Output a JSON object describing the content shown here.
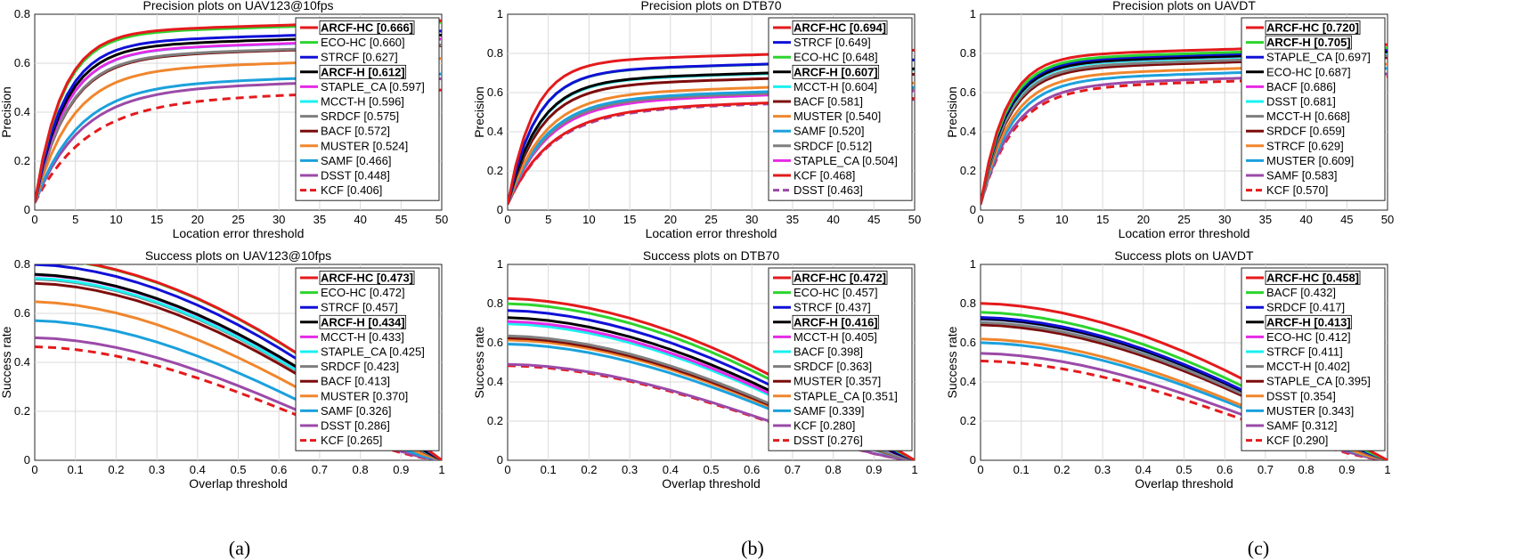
{
  "colors": {
    "ARCF-HC": "#e41a1c",
    "ECO-HC": "#2dd42d",
    "STRCF": "#1010d8",
    "ARCF-H": "#000000",
    "STAPLE_CA": "#e62ae6",
    "MCCT-H": "#19f0f0",
    "SRDCF": "#7f7f7f",
    "BACF": "#7d0c0c",
    "MUSTER": "#f0862d",
    "SAMF": "#1ba1dc",
    "DSST": "#9b4aa8",
    "KCF": "#e41a1c"
  },
  "captions": [
    "(a)",
    "(b)",
    "(c)"
  ],
  "chart_data": [
    {
      "id": "prec-uav123",
      "type": "line",
      "kind": "precision",
      "title": "Precision plots on UAV123@10fps",
      "xlabel": "Location error threshold",
      "ylabel": "Precision",
      "xlim": [
        0,
        50
      ],
      "ylim": [
        0,
        0.8
      ],
      "xticks": [
        "0",
        "5",
        "10",
        "15",
        "20",
        "25",
        "30",
        "35",
        "40",
        "45",
        "50"
      ],
      "yticks": [
        "0",
        "0.2",
        "0.4",
        "0.6",
        "0.8"
      ],
      "series": [
        {
          "name": "ARCF-HC",
          "score": "0.666",
          "bold": true
        },
        {
          "name": "ECO-HC",
          "score": "0.660"
        },
        {
          "name": "STRCF",
          "score": "0.627"
        },
        {
          "name": "ARCF-H",
          "score": "0.612",
          "bold": true
        },
        {
          "name": "STAPLE_CA",
          "score": "0.597"
        },
        {
          "name": "MCCT-H",
          "score": "0.596"
        },
        {
          "name": "SRDCF",
          "score": "0.575"
        },
        {
          "name": "BACF",
          "score": "0.572"
        },
        {
          "name": "MUSTER",
          "score": "0.524"
        },
        {
          "name": "SAMF",
          "score": "0.466"
        },
        {
          "name": "DSST",
          "score": "0.448"
        },
        {
          "name": "KCF",
          "score": "0.406",
          "dashed": true
        }
      ]
    },
    {
      "id": "prec-dtb70",
      "type": "line",
      "kind": "precision",
      "title": "Precision plots on DTB70",
      "xlabel": "Location error threshold",
      "ylabel": "Precision",
      "xlim": [
        0,
        50
      ],
      "ylim": [
        0,
        1
      ],
      "xticks": [
        "0",
        "5",
        "10",
        "15",
        "20",
        "25",
        "30",
        "35",
        "40",
        "45",
        "50"
      ],
      "yticks": [
        "0",
        "0.2",
        "0.4",
        "0.6",
        "0.8",
        "1"
      ],
      "series": [
        {
          "name": "ARCF-HC",
          "score": "0.694",
          "bold": true
        },
        {
          "name": "STRCF",
          "score": "0.649"
        },
        {
          "name": "ECO-HC",
          "score": "0.648"
        },
        {
          "name": "ARCF-H",
          "score": "0.607",
          "bold": true
        },
        {
          "name": "MCCT-H",
          "score": "0.604"
        },
        {
          "name": "BACF",
          "score": "0.581"
        },
        {
          "name": "MUSTER",
          "score": "0.540"
        },
        {
          "name": "SAMF",
          "score": "0.520"
        },
        {
          "name": "SRDCF",
          "score": "0.512"
        },
        {
          "name": "STAPLE_CA",
          "score": "0.504"
        },
        {
          "name": "KCF",
          "score": "0.468"
        },
        {
          "name": "DSST",
          "score": "0.463",
          "dashed": true
        }
      ]
    },
    {
      "id": "prec-uavdt",
      "type": "line",
      "kind": "precision",
      "title": "Precision plots on UAVDT",
      "xlabel": "Location error threshold",
      "ylabel": "Precision",
      "xlim": [
        0,
        50
      ],
      "ylim": [
        0,
        1
      ],
      "xticks": [
        "0",
        "5",
        "10",
        "15",
        "20",
        "25",
        "30",
        "35",
        "40",
        "45",
        "50"
      ],
      "yticks": [
        "0",
        "0.2",
        "0.4",
        "0.6",
        "0.8",
        "1"
      ],
      "series": [
        {
          "name": "ARCF-HC",
          "score": "0.720",
          "bold": true
        },
        {
          "name": "ARCF-H",
          "score": "0.705",
          "bold": true,
          "colorKey": "ECO-HC"
        },
        {
          "name": "STAPLE_CA",
          "score": "0.697",
          "colorKey": "STRCF"
        },
        {
          "name": "ECO-HC",
          "score": "0.687",
          "colorKey": "ARCF-H"
        },
        {
          "name": "BACF",
          "score": "0.686",
          "colorKey": "STAPLE_CA"
        },
        {
          "name": "DSST",
          "score": "0.681",
          "colorKey": "MCCT-H"
        },
        {
          "name": "MCCT-H",
          "score": "0.668",
          "colorKey": "SRDCF"
        },
        {
          "name": "SRDCF",
          "score": "0.659",
          "colorKey": "BACF"
        },
        {
          "name": "STRCF",
          "score": "0.629",
          "colorKey": "MUSTER"
        },
        {
          "name": "MUSTER",
          "score": "0.609",
          "colorKey": "SAMF"
        },
        {
          "name": "SAMF",
          "score": "0.583",
          "colorKey": "DSST"
        },
        {
          "name": "KCF",
          "score": "0.570",
          "dashed": true
        }
      ]
    },
    {
      "id": "succ-uav123",
      "type": "line",
      "kind": "success",
      "title": "Success plots on UAV123@10fps",
      "xlabel": "Overlap threshold",
      "ylabel": "Success rate",
      "xlim": [
        0,
        1
      ],
      "ylim": [
        0,
        0.8
      ],
      "xticks": [
        "0",
        "0.1",
        "0.2",
        "0.3",
        "0.4",
        "0.5",
        "0.6",
        "0.7",
        "0.8",
        "0.9",
        "1"
      ],
      "yticks": [
        "0",
        "0.2",
        "0.4",
        "0.6",
        "0.8"
      ],
      "series": [
        {
          "name": "ARCF-HC",
          "score": "0.473",
          "bold": true
        },
        {
          "name": "ECO-HC",
          "score": "0.472"
        },
        {
          "name": "STRCF",
          "score": "0.457"
        },
        {
          "name": "ARCF-H",
          "score": "0.434",
          "bold": true
        },
        {
          "name": "MCCT-H",
          "score": "0.433",
          "colorKey": "STAPLE_CA"
        },
        {
          "name": "STAPLE_CA",
          "score": "0.425",
          "colorKey": "MCCT-H"
        },
        {
          "name": "SRDCF",
          "score": "0.423"
        },
        {
          "name": "BACF",
          "score": "0.413"
        },
        {
          "name": "MUSTER",
          "score": "0.370"
        },
        {
          "name": "SAMF",
          "score": "0.326"
        },
        {
          "name": "DSST",
          "score": "0.286"
        },
        {
          "name": "KCF",
          "score": "0.265",
          "dashed": true
        }
      ]
    },
    {
      "id": "succ-dtb70",
      "type": "line",
      "kind": "success",
      "title": "Success plots on DTB70",
      "xlabel": "Overlap threshold",
      "ylabel": "Success rate",
      "xlim": [
        0,
        1
      ],
      "ylim": [
        0,
        1
      ],
      "xticks": [
        "0",
        "0.1",
        "0.2",
        "0.3",
        "0.4",
        "0.5",
        "0.6",
        "0.7",
        "0.8",
        "0.9",
        "1"
      ],
      "yticks": [
        "0",
        "0.2",
        "0.4",
        "0.6",
        "0.8",
        "1"
      ],
      "series": [
        {
          "name": "ARCF-HC",
          "score": "0.472",
          "bold": true
        },
        {
          "name": "ECO-HC",
          "score": "0.457"
        },
        {
          "name": "STRCF",
          "score": "0.437"
        },
        {
          "name": "ARCF-H",
          "score": "0.416",
          "bold": true
        },
        {
          "name": "MCCT-H",
          "score": "0.405",
          "colorKey": "STAPLE_CA"
        },
        {
          "name": "BACF",
          "score": "0.398",
          "colorKey": "MCCT-H"
        },
        {
          "name": "SRDCF",
          "score": "0.363"
        },
        {
          "name": "MUSTER",
          "score": "0.357",
          "colorKey": "BACF"
        },
        {
          "name": "STAPLE_CA",
          "score": "0.351",
          "colorKey": "MUSTER"
        },
        {
          "name": "SAMF",
          "score": "0.339"
        },
        {
          "name": "KCF",
          "score": "0.280",
          "colorKey": "DSST"
        },
        {
          "name": "DSST",
          "score": "0.276",
          "dashed": true,
          "colorKey": "KCF"
        }
      ]
    },
    {
      "id": "succ-uavdt",
      "type": "line",
      "kind": "success",
      "title": "Success plots on UAVDT",
      "xlabel": "Overlap threshold",
      "ylabel": "Success rate",
      "xlim": [
        0,
        1
      ],
      "ylim": [
        0,
        1
      ],
      "xticks": [
        "0",
        "0.1",
        "0.2",
        "0.3",
        "0.4",
        "0.5",
        "0.6",
        "0.7",
        "0.8",
        "0.9",
        "1"
      ],
      "yticks": [
        "0",
        "0.2",
        "0.4",
        "0.6",
        "0.8",
        "1"
      ],
      "series": [
        {
          "name": "ARCF-HC",
          "score": "0.458",
          "bold": true
        },
        {
          "name": "BACF",
          "score": "0.432",
          "colorKey": "ECO-HC"
        },
        {
          "name": "SRDCF",
          "score": "0.417",
          "colorKey": "STRCF"
        },
        {
          "name": "ARCF-H",
          "score": "0.413",
          "bold": true
        },
        {
          "name": "ECO-HC",
          "score": "0.412",
          "colorKey": "STAPLE_CA"
        },
        {
          "name": "STRCF",
          "score": "0.411",
          "colorKey": "MCCT-H"
        },
        {
          "name": "MCCT-H",
          "score": "0.402",
          "colorKey": "SRDCF"
        },
        {
          "name": "STAPLE_CA",
          "score": "0.395",
          "colorKey": "BACF"
        },
        {
          "name": "DSST",
          "score": "0.354",
          "colorKey": "MUSTER"
        },
        {
          "name": "MUSTER",
          "score": "0.343",
          "colorKey": "SAMF"
        },
        {
          "name": "SAMF",
          "score": "0.312",
          "colorKey": "DSST"
        },
        {
          "name": "KCF",
          "score": "0.290",
          "dashed": true
        }
      ]
    }
  ]
}
